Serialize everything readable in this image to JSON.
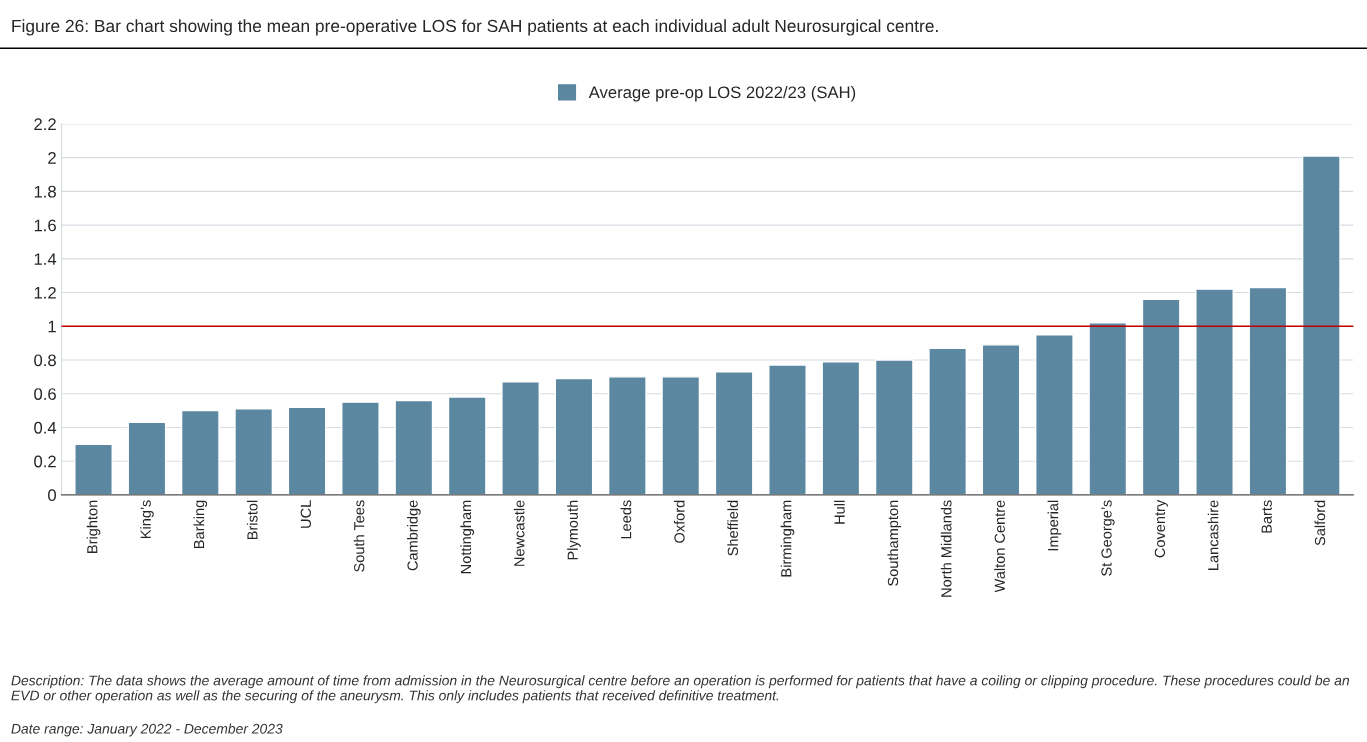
{
  "chart_data": {
    "type": "bar",
    "title": "Figure 26: Bar chart showing the mean pre-operative LOS for SAH patients at each individual adult Neurosurgical centre.",
    "categories": [
      "Brighton",
      "King’s",
      "Barking",
      "Bristol",
      "UCL",
      "South Tees",
      "Cambridge",
      "Nottingham",
      "Newcastle",
      "Plymouth",
      "Leeds",
      "Oxford",
      "Sheffield",
      "Birmingham",
      "Hull",
      "Southampton",
      "North Midlands",
      "Walton Centre",
      "Imperial",
      "St George’s",
      "Coventry",
      "Lancashire",
      "Barts",
      "Salford"
    ],
    "series": [
      {
        "name": "Average pre-op LOS 2022/23 (SAH)",
        "color": "#5b87a0",
        "values": [
          0.3,
          0.43,
          0.5,
          0.51,
          0.52,
          0.55,
          0.56,
          0.58,
          0.67,
          0.69,
          0.7,
          0.7,
          0.73,
          0.77,
          0.79,
          0.8,
          0.87,
          0.89,
          0.95,
          1.02,
          1.16,
          1.22,
          1.23,
          2.01
        ]
      }
    ],
    "ylim": [
      0,
      2.2
    ],
    "yticks": [
      0,
      0.2,
      0.4,
      0.6,
      0.8,
      1,
      1.2,
      1.4,
      1.6,
      1.8,
      2,
      2.2
    ],
    "grid": "y",
    "legend": "top",
    "ref_lines": [
      {
        "axis": "y",
        "value": 1,
        "color": "#c00000"
      }
    ],
    "annotations": [
      "Description: The data shows the average amount of time from admission in the Neurosurgical centre before an operation is performed for patients that have a coiling or clipping procedure. These procedures could be an EVD or other operation as well as the securing of the aneurysm. This only includes patients that received definitive treatment.",
      "Date range: January 2022 - December 2023"
    ]
  }
}
